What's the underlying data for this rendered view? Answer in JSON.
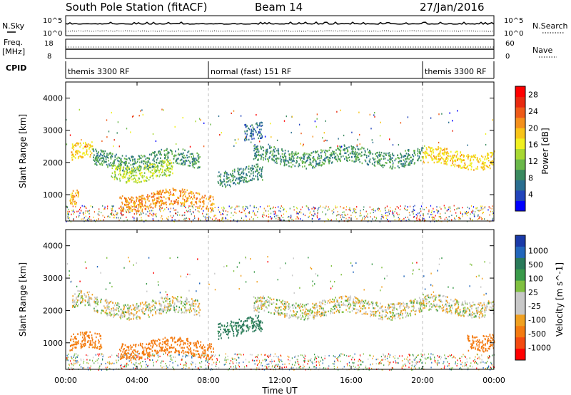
{
  "header": {
    "station": "South Pole Station (fitACF)",
    "beam": "Beam 14",
    "date": "27/Jan/2016"
  },
  "noise_panel": {
    "left_label": "N.Sky",
    "left_top_tick": "10^5",
    "left_bottom_tick": "10^0",
    "right_top_tick": "10^5",
    "right_bottom_tick": "10^0",
    "right_label": "N.Search"
  },
  "freq_panel": {
    "left_label_line1": "Freq.",
    "left_label_line2": "[MHz]",
    "left_top_tick": "18",
    "left_bottom_tick": "8",
    "right_top_tick": "60",
    "right_bottom_tick": "0",
    "right_label": "Nave"
  },
  "cpid_panel": {
    "label": "CPID",
    "segments": [
      {
        "start_h": 0,
        "end_h": 8,
        "label": "themis 3300 RF"
      },
      {
        "start_h": 8,
        "end_h": 20,
        "label": "normal (fast) 151 RF"
      },
      {
        "start_h": 20,
        "end_h": 24,
        "label": "themis 3300 RF"
      }
    ]
  },
  "chart_data": [
    {
      "type": "heatmap",
      "name": "power",
      "ylabel": "Slant Range [km]",
      "ylim": [
        180,
        4500
      ],
      "xlim": [
        0,
        24
      ],
      "yticks": [
        "1000",
        "2000",
        "3000",
        "4000"
      ],
      "ytick_values": [
        1000,
        2000,
        3000,
        4000
      ],
      "colorbar": {
        "label": "Power [dB]",
        "ticks": [
          "4",
          "8",
          "12",
          "16",
          "20",
          "24",
          "28"
        ],
        "tick_values": [
          4,
          8,
          12,
          16,
          20,
          24,
          28
        ],
        "range": [
          0,
          30
        ],
        "colors": [
          "#0000ff",
          "#2244bb",
          "#2a6e90",
          "#3a8a60",
          "#6ab84a",
          "#a8d832",
          "#f0f020",
          "#f8c418",
          "#f4901c",
          "#ee5a18",
          "#e82a10",
          "#ff0000"
        ]
      },
      "bands": [
        {
          "start_h": 0.3,
          "end_h": 1.5,
          "range_km": 2300,
          "value": 18
        },
        {
          "start_h": 1.5,
          "end_h": 7.5,
          "range_km": 2100,
          "value": 9
        },
        {
          "start_h": 2.5,
          "end_h": 6.0,
          "range_km": 1750,
          "value": 14
        },
        {
          "start_h": 0.2,
          "end_h": 0.7,
          "range_km": 900,
          "value": 20
        },
        {
          "start_h": 3.0,
          "end_h": 8.3,
          "range_km": 850,
          "value": 21
        },
        {
          "start_h": 8.5,
          "end_h": 11.0,
          "range_km": 1600,
          "value": 8
        },
        {
          "start_h": 10.0,
          "end_h": 11.0,
          "range_km": 2900,
          "value": 6
        },
        {
          "start_h": 10.5,
          "end_h": 20.0,
          "range_km": 2200,
          "value": 9
        },
        {
          "start_h": 20.0,
          "end_h": 24.0,
          "range_km": 2150,
          "value": 18
        }
      ]
    },
    {
      "type": "heatmap",
      "name": "velocity",
      "ylabel": "Slant Range [km]",
      "ylim": [
        180,
        4500
      ],
      "xlim": [
        0,
        24
      ],
      "yticks": [
        "1000",
        "2000",
        "3000",
        "4000"
      ],
      "ytick_values": [
        1000,
        2000,
        3000,
        4000
      ],
      "colorbar": {
        "label": "Velocity [m s^-1]",
        "ticks": [
          "1000",
          "500",
          "100",
          "25",
          "-25",
          "-100",
          "-500",
          "-1000"
        ],
        "colors": [
          "#1a3aa8",
          "#2266bb",
          "#2a7a5a",
          "#3a9a4a",
          "#80c040",
          "#c8c8c8",
          "#c8c8c8",
          "#f0a020",
          "#f47a10",
          "#f44a10",
          "#ff0000"
        ]
      },
      "bands": [
        {
          "start_h": 0.3,
          "end_h": 1.5,
          "range_km": 2300,
          "value": 0
        },
        {
          "start_h": 1.5,
          "end_h": 7.5,
          "range_km": 2100,
          "value": 0
        },
        {
          "start_h": 0.2,
          "end_h": 2.0,
          "range_km": 1000,
          "value": -150
        },
        {
          "start_h": 3.0,
          "end_h": 8.3,
          "range_km": 850,
          "value": -200
        },
        {
          "start_h": 8.5,
          "end_h": 11.0,
          "range_km": 1500,
          "value": 150
        },
        {
          "start_h": 10.5,
          "end_h": 20.0,
          "range_km": 2100,
          "value": 0
        },
        {
          "start_h": 20.0,
          "end_h": 24.0,
          "range_km": 2150,
          "value": 0
        },
        {
          "start_h": 22.5,
          "end_h": 24.0,
          "range_km": 1100,
          "value": -200
        }
      ]
    }
  ],
  "x_axis": {
    "label": "Time UT",
    "ticks": [
      "00:00",
      "04:00",
      "08:00",
      "12:00",
      "16:00",
      "20:00",
      "00:00"
    ],
    "tick_values": [
      0,
      4,
      8,
      12,
      16,
      20,
      24
    ]
  }
}
